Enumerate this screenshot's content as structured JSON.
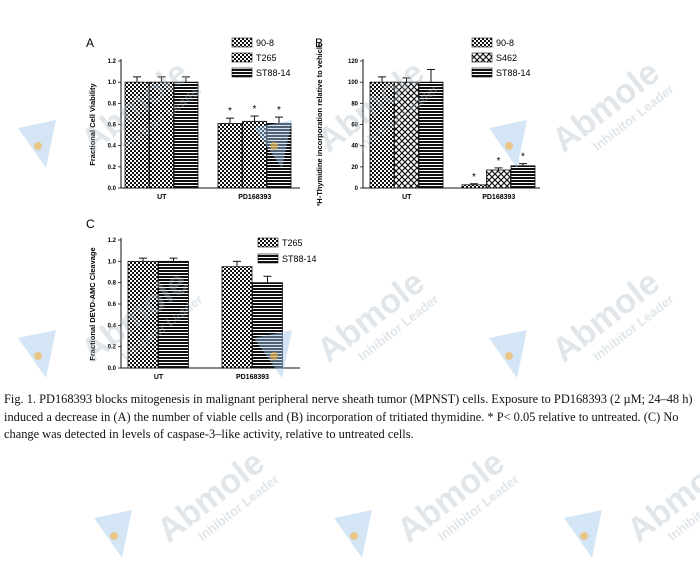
{
  "chart_data": [
    {
      "panel": "A",
      "type": "bar",
      "categories": [
        "UT",
        "PD168393"
      ],
      "series": [
        {
          "name": "90-8",
          "values": [
            1.0,
            0.61
          ],
          "errors": [
            0.05,
            0.05
          ]
        },
        {
          "name": "T265",
          "values": [
            1.0,
            0.63
          ],
          "errors": [
            0.05,
            0.05
          ]
        },
        {
          "name": "ST88-14",
          "values": [
            1.0,
            0.61
          ],
          "errors": [
            0.05,
            0.06
          ]
        }
      ],
      "significance": [
        [
          false,
          false,
          false
        ],
        [
          true,
          true,
          true
        ]
      ],
      "ylabel": "Fractional Cell Viability",
      "ylim": [
        0.0,
        1.2
      ],
      "yticks": [
        "0.0",
        "0.2",
        "0.4",
        "0.6",
        "0.8",
        "1.0",
        "1.2"
      ],
      "legend": "top-right"
    },
    {
      "panel": "B",
      "type": "bar",
      "categories": [
        "UT",
        "PD168393"
      ],
      "series": [
        {
          "name": "90-8",
          "values": [
            100,
            3
          ],
          "errors": [
            5,
            1
          ]
        },
        {
          "name": "S462",
          "values": [
            100,
            17
          ],
          "errors": [
            4,
            2
          ]
        },
        {
          "name": "ST88-14",
          "values": [
            100,
            21
          ],
          "errors": [
            12,
            2
          ]
        }
      ],
      "significance": [
        [
          false,
          false,
          false
        ],
        [
          true,
          true,
          true
        ]
      ],
      "ylabel": "³H-Thymidine incorporation relative to vehicle",
      "ylim": [
        0,
        120
      ],
      "yticks": [
        "0",
        "20",
        "40",
        "60",
        "80",
        "100",
        "120"
      ],
      "legend": "top-right"
    },
    {
      "panel": "C",
      "type": "bar",
      "categories": [
        "UT",
        "PD168393"
      ],
      "series": [
        {
          "name": "T265",
          "values": [
            1.0,
            0.95
          ],
          "errors": [
            0.03,
            0.05
          ]
        },
        {
          "name": "ST88-14",
          "values": [
            1.0,
            0.8
          ],
          "errors": [
            0.03,
            0.06
          ]
        }
      ],
      "significance": [
        [
          false,
          false
        ],
        [
          false,
          false
        ]
      ],
      "ylabel": "Fractional DEVD-AMC Cleavage",
      "ylim": [
        0.0,
        1.2
      ],
      "yticks": [
        "0.0",
        "0.2",
        "0.4",
        "0.6",
        "0.8",
        "1.0",
        "1.2"
      ],
      "legend": "top-right"
    }
  ],
  "caption": "Fig. 1. PD168393 blocks mitogenesis in malignant peripheral nerve sheath tumor (MPNST) cells. Exposure to PD168393 (2 µM; 24–48 h) induced a decrease in (A) the number of viable cells and (B) incorporation of tritiated thymidine. * P< 0.05 relative to untreated. (C) No change was detected in levels of caspase-3–like activity, relative to untreated cells.",
  "watermark": {
    "brand": "Abmole",
    "tagline": "Inhibitor Leader"
  },
  "colors": {
    "bars_dark": "#111111",
    "watermark_blue": "#9fc7ea",
    "watermark_orange": "#f5b041"
  }
}
